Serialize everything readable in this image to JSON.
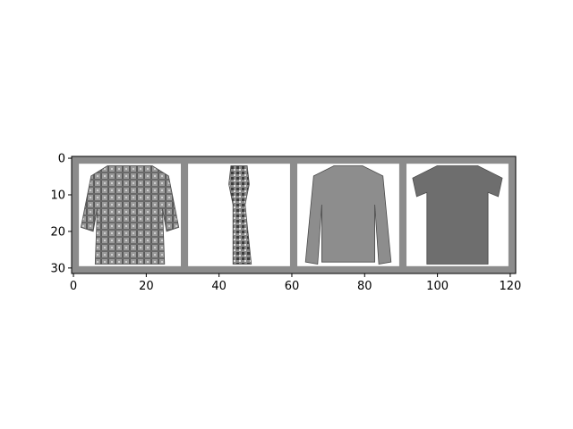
{
  "chart_data": {
    "type": "image-grid",
    "title": "",
    "xlabel": "",
    "ylabel": "",
    "xlim": [
      -0.5,
      121.5
    ],
    "ylim": [
      31.5,
      -0.5
    ],
    "x_ticks": [
      0,
      20,
      40,
      60,
      80,
      100,
      120
    ],
    "x_tick_labels": [
      "0",
      "20",
      "40",
      "60",
      "80",
      "100",
      "120"
    ],
    "y_ticks": [
      0,
      10,
      20,
      30
    ],
    "y_tick_labels": [
      "0",
      "10",
      "20",
      "30"
    ],
    "grid": false,
    "border_color": "#8c8c8c",
    "image_background": "#ffffff",
    "tiles": [
      {
        "name": "shirt-plaid",
        "x_start": 2,
        "x_end": 29,
        "y_start": 2,
        "y_end": 29,
        "fill": "#8a8a8a",
        "pattern": "plaid"
      },
      {
        "name": "dress",
        "x_start": 32,
        "x_end": 59,
        "y_start": 2,
        "y_end": 29,
        "fill": "#6a6a6a",
        "pattern": "floral"
      },
      {
        "name": "pullover",
        "x_start": 62,
        "x_end": 89,
        "y_start": 2,
        "y_end": 29,
        "fill": "#8d8d8d",
        "pattern": "solid"
      },
      {
        "name": "t-shirt",
        "x_start": 92,
        "x_end": 119,
        "y_start": 2,
        "y_end": 29,
        "fill": "#6e6e6e",
        "pattern": "solid"
      }
    ]
  }
}
